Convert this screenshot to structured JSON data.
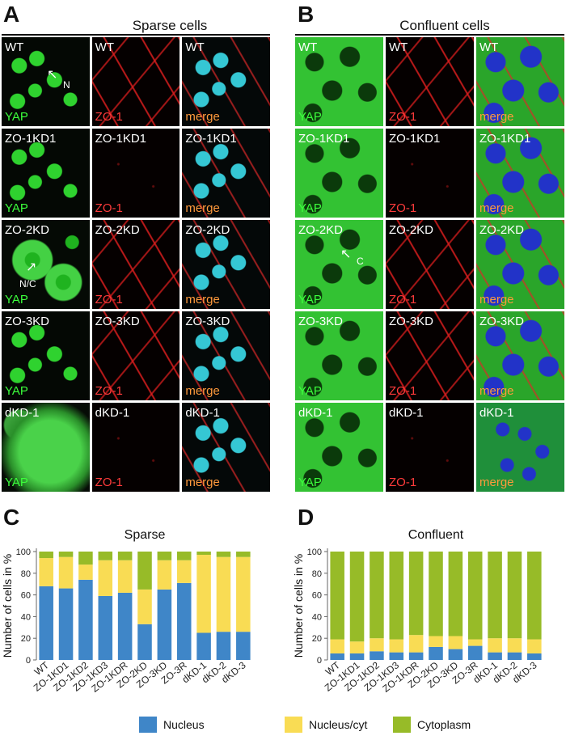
{
  "panel_a": {
    "letter": "A",
    "title": "Sparse cells",
    "rows": [
      {
        "col1": "WT",
        "col2": "WT",
        "col3": "WT",
        "ch1": "YAP",
        "ch2": "ZO-1",
        "ch3": "merge",
        "tex": "sparse"
      },
      {
        "col1": "ZO-1KD1",
        "col2": "ZO-1KD1",
        "col3": "ZO-1KD1",
        "ch1": "YAP",
        "ch2": "ZO-1",
        "ch3": "merge",
        "tex": "sparse-faint"
      },
      {
        "col1": "ZO-2KD",
        "col2": "ZO-2KD",
        "col3": "ZO-2KD",
        "ch1": "YAP",
        "ch2": "ZO-1",
        "ch3": "merge",
        "tex": "mixed"
      },
      {
        "col1": "ZO-3KD",
        "col2": "ZO-3KD",
        "col3": "ZO-3KD",
        "ch1": "YAP",
        "ch2": "ZO-1",
        "ch3": "merge",
        "tex": "sparse"
      },
      {
        "col1": "dKD-1",
        "col2": "dKD-1",
        "col3": "dKD-1",
        "ch1": "YAP",
        "ch2": "ZO-1",
        "ch3": "merge",
        "tex": "diffuse"
      }
    ],
    "annotations": {
      "n": "N",
      "nc": "N/C"
    }
  },
  "panel_b": {
    "letter": "B",
    "title": "Confluent cells",
    "rows": [
      {
        "col1": "WT",
        "col2": "WT",
        "col3": "WT",
        "ch1": "YAP",
        "ch2": "ZO-1",
        "ch3": "merge",
        "tex": "conf"
      },
      {
        "col1": "ZO-1KD1",
        "col2": "ZO-1KD1",
        "col3": "ZO-1KD1",
        "ch1": "YAP",
        "ch2": "ZO-1",
        "ch3": "merge",
        "tex": "conf-faint"
      },
      {
        "col1": "ZO-2KD",
        "col2": "ZO-2KD",
        "col3": "ZO-2KD",
        "ch1": "YAP",
        "ch2": "ZO-1",
        "ch3": "merge",
        "tex": "conf"
      },
      {
        "col1": "ZO-3KD",
        "col2": "ZO-3KD",
        "col3": "ZO-3KD",
        "ch1": "YAP",
        "ch2": "ZO-1",
        "ch3": "merge",
        "tex": "conf"
      },
      {
        "col1": "dKD-1",
        "col2": "dKD-1",
        "col3": "dKD-1",
        "ch1": "YAP",
        "ch2": "ZO-1",
        "ch3": "merge",
        "tex": "dense"
      }
    ],
    "annotations": {
      "c": "C"
    }
  },
  "panel_c": {
    "letter": "C"
  },
  "panel_d": {
    "letter": "D"
  },
  "legend": {
    "items": [
      {
        "label": "Nucleus",
        "color": "#3f86c8"
      },
      {
        "label": "Nucleus/cyt",
        "color": "#f9dc54"
      },
      {
        "label": "Cytoplasm",
        "color": "#97bb28"
      }
    ]
  },
  "chart_data": [
    {
      "type": "bar",
      "stacked": true,
      "title": "Sparse",
      "ylabel": "Number of cells in %",
      "xlabel": "",
      "ylim": [
        0,
        100
      ],
      "yticks": [
        0,
        20,
        40,
        60,
        80,
        100
      ],
      "categories": [
        "WT",
        "ZO-1KD1",
        "ZO-1KD2",
        "ZO-1KD3",
        "ZO-1KDR",
        "ZO-2KD",
        "ZO-3KD",
        "ZO-3R",
        "dKD-1",
        "dKD-2",
        "dKD-3"
      ],
      "series": [
        {
          "name": "Nucleus",
          "values": [
            68,
            66,
            74,
            59,
            62,
            33,
            65,
            71,
            25,
            26,
            26
          ]
        },
        {
          "name": "Nucleus/cyt",
          "values": [
            26,
            29,
            14,
            33,
            30,
            32,
            27,
            21,
            72,
            69,
            69
          ]
        },
        {
          "name": "Cytoplasm",
          "values": [
            6,
            5,
            12,
            8,
            8,
            35,
            8,
            8,
            3,
            5,
            5
          ]
        }
      ],
      "colors": [
        "#3f86c8",
        "#f9dc54",
        "#97bb28"
      ]
    },
    {
      "type": "bar",
      "stacked": true,
      "title": "Confluent",
      "ylabel": "Number of cells in %",
      "xlabel": "",
      "ylim": [
        0,
        100
      ],
      "yticks": [
        0,
        20,
        40,
        60,
        80,
        100
      ],
      "categories": [
        "WT",
        "ZO-1KD1",
        "ZO-1KD2",
        "ZO-1KD3",
        "ZO-1KDR",
        "ZO-2KD",
        "ZO-3KD",
        "ZO-3R",
        "dKD-1",
        "dKD-2",
        "dKD-3"
      ],
      "series": [
        {
          "name": "Nucleus",
          "values": [
            6,
            6,
            8,
            7,
            7,
            12,
            10,
            13,
            7,
            7,
            6
          ]
        },
        {
          "name": "Nucleus/cyt",
          "values": [
            13,
            11,
            12,
            12,
            16,
            10,
            12,
            6,
            13,
            13,
            13
          ]
        },
        {
          "name": "Cytoplasm",
          "values": [
            81,
            83,
            80,
            81,
            77,
            78,
            78,
            81,
            80,
            80,
            81
          ]
        }
      ],
      "colors": [
        "#3f86c8",
        "#f9dc54",
        "#97bb28"
      ]
    }
  ]
}
